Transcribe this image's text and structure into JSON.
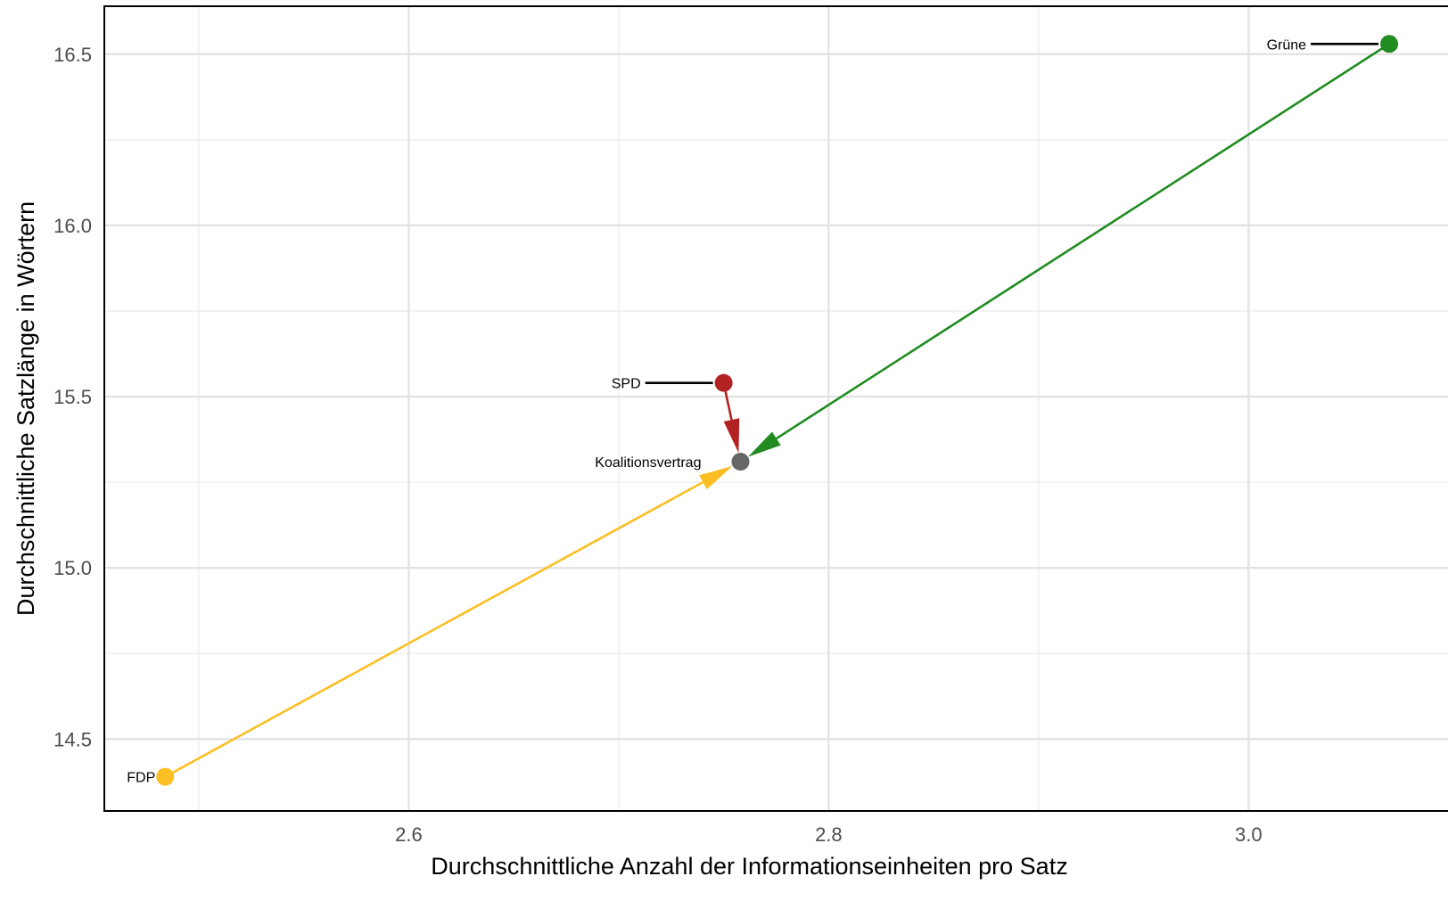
{
  "chart_data": {
    "type": "scatter",
    "title": "",
    "xlabel": "Durchschnittliche Anzahl der Informationseinheiten pro Satz",
    "ylabel": "Durchschnittliche Satzlänge in Wörtern",
    "xlim": [
      2.455,
      3.095
    ],
    "ylim": [
      14.29,
      16.64
    ],
    "x_ticks": [
      2.6,
      2.8,
      3.0
    ],
    "x_tick_labels": [
      "2.6",
      "2.8",
      "3.0"
    ],
    "y_ticks": [
      14.5,
      15.0,
      15.5,
      16.0,
      16.5
    ],
    "y_tick_labels": [
      "14.5",
      "15.0",
      "15.5",
      "16.0",
      "16.5"
    ],
    "grid": true,
    "legend": "none",
    "points": [
      {
        "label": "FDP",
        "x": 2.484,
        "y": 14.39,
        "color": "#fbbf24",
        "label_side": "left",
        "leader": false
      },
      {
        "label": "SPD",
        "x": 2.75,
        "y": 15.54,
        "color": "#b22222",
        "label_side": "left",
        "leader": true
      },
      {
        "label": "Grüne",
        "x": 3.067,
        "y": 16.53,
        "color": "#228b22",
        "label_side": "left",
        "leader": true
      },
      {
        "label": "Koalitionsvertrag",
        "x": 2.758,
        "y": 15.31,
        "color": "#666666",
        "label_side": "left",
        "leader": false
      }
    ],
    "arrows": [
      {
        "from": "FDP",
        "to": "Koalitionsvertrag",
        "color": "#fbbf24"
      },
      {
        "from": "SPD",
        "to": "Koalitionsvertrag",
        "color": "#b22222"
      },
      {
        "from": "Grüne",
        "to": "Koalitionsvertrag",
        "color": "#228b22"
      }
    ]
  }
}
